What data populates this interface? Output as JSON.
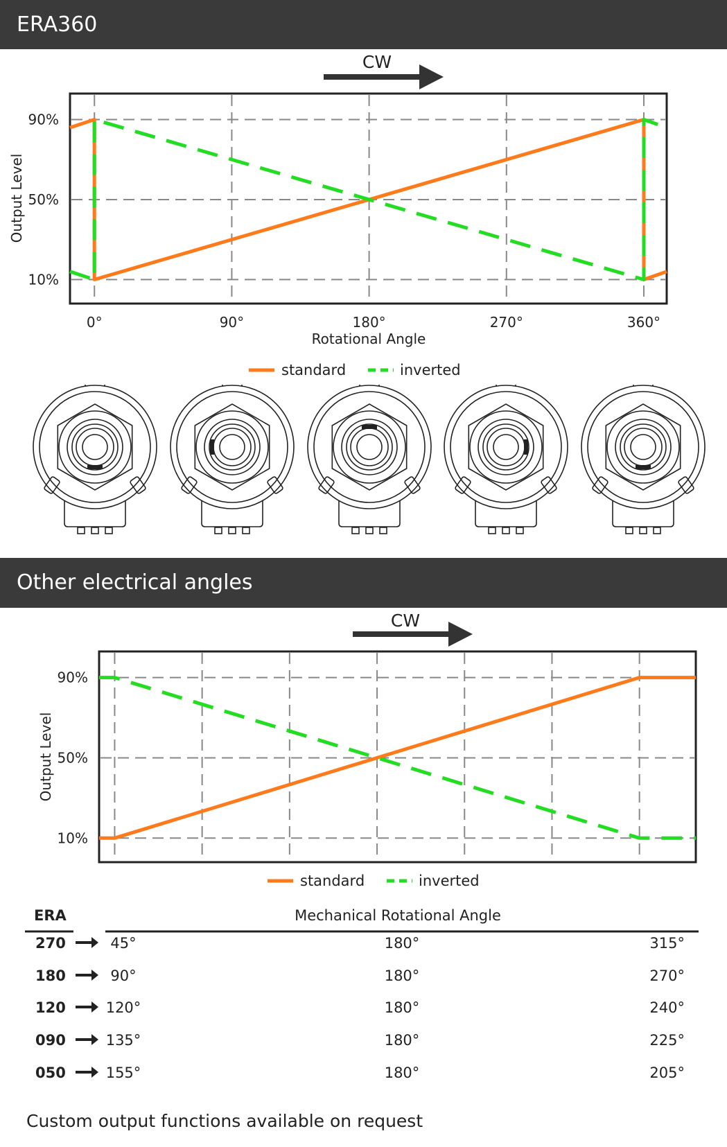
{
  "section1": {
    "title": "ERA360"
  },
  "section2": {
    "title": "Other electrical angles"
  },
  "direction_label": "CW",
  "legend": {
    "standard": "standard",
    "inverted": "inverted"
  },
  "colors": {
    "standard": "#ff7a1a",
    "inverted": "#22dd22",
    "band": "#3a3a3a"
  },
  "knob_icons": [
    "potentiometer-icon",
    "potentiometer-icon",
    "potentiometer-icon",
    "potentiometer-icon",
    "potentiometer-icon"
  ],
  "chart_data": [
    {
      "type": "line",
      "title": "ERA360",
      "xlabel": "Rotational Angle",
      "ylabel": "Output Level",
      "x_ticks": [
        0,
        90,
        180,
        270,
        360
      ],
      "x_tick_labels": [
        "0°",
        "90°",
        "180°",
        "270°",
        "360°"
      ],
      "y_ticks": [
        10,
        50,
        90
      ],
      "y_tick_labels": [
        "10%",
        "50%",
        "90%"
      ],
      "xlim": [
        -16,
        375
      ],
      "ylim": [
        -2,
        103
      ],
      "grid": true,
      "legend_position": "bottom-center",
      "series": [
        {
          "name": "standard",
          "style": "solid",
          "x": [
            -16,
            0,
            0,
            360,
            360,
            375
          ],
          "y": [
            86,
            90,
            10,
            90,
            10,
            14
          ]
        },
        {
          "name": "inverted",
          "style": "dashed",
          "x": [
            -16,
            0,
            0,
            360,
            360,
            375
          ],
          "y": [
            14,
            10,
            90,
            10,
            90,
            86
          ]
        }
      ]
    },
    {
      "type": "line",
      "xlabel": "",
      "ylabel": "Output Level",
      "x_ticks": [
        45,
        90,
        135,
        180,
        225,
        270,
        315
      ],
      "y_ticks": [
        10,
        50,
        90
      ],
      "y_tick_labels": [
        "10%",
        "50%",
        "90%"
      ],
      "xlim": [
        37,
        344
      ],
      "ylim": [
        -2,
        103
      ],
      "grid": true,
      "legend_position": "bottom-center",
      "series": [
        {
          "name": "standard",
          "style": "solid",
          "x": [
            37,
            45,
            315,
            344
          ],
          "y": [
            10,
            10,
            90,
            90
          ]
        },
        {
          "name": "inverted",
          "style": "dashed",
          "x": [
            37,
            45,
            315,
            344
          ],
          "y": [
            90,
            90,
            10,
            10
          ]
        }
      ]
    }
  ],
  "era_table": {
    "header_era": "ERA",
    "header_angle": "Mechanical Rotational Angle",
    "rows": [
      {
        "era": "270",
        "start": "45°",
        "mid": "180°",
        "end": "315°"
      },
      {
        "era": "180",
        "start": "90°",
        "mid": "180°",
        "end": "270°"
      },
      {
        "era": "120",
        "start": "120°",
        "mid": "180°",
        "end": "240°"
      },
      {
        "era": "090",
        "start": "135°",
        "mid": "180°",
        "end": "225°"
      },
      {
        "era": "050",
        "start": "155°",
        "mid": "180°",
        "end": "205°"
      }
    ]
  },
  "footer": "Custom output functions available on request"
}
